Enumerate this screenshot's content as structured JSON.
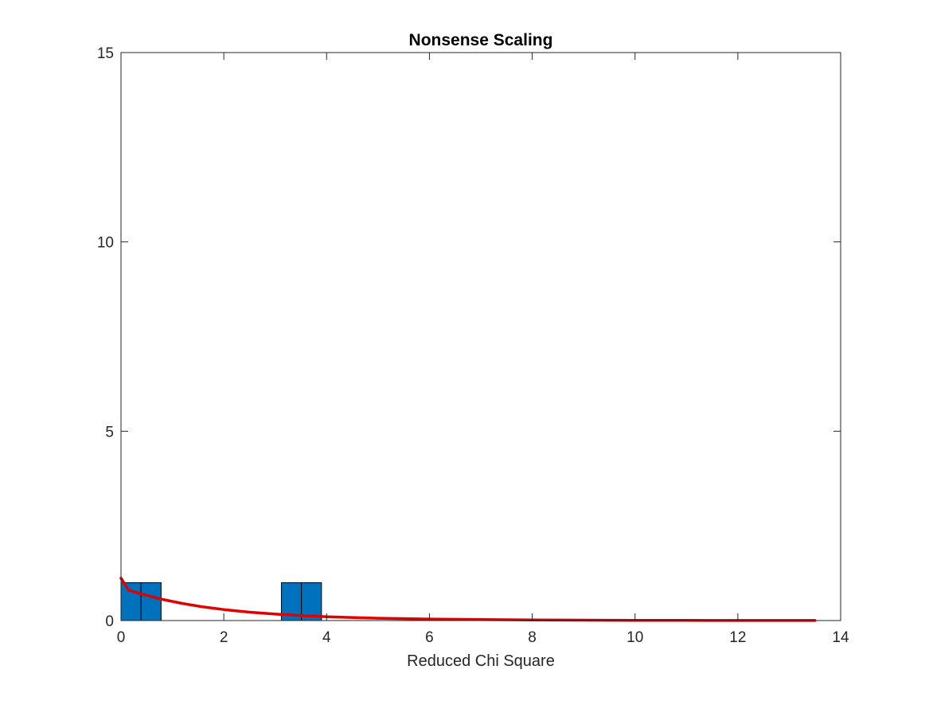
{
  "chart_data": {
    "type": "bar",
    "title": "Nonsense Scaling",
    "xlabel": "Reduced Chi Square",
    "ylabel": "",
    "xlim": [
      0,
      14
    ],
    "ylim": [
      0,
      15
    ],
    "x_ticks": [
      0,
      2,
      4,
      6,
      8,
      10,
      12,
      14
    ],
    "y_ticks": [
      0,
      5,
      10,
      15
    ],
    "grid": false,
    "histogram_bins": [
      {
        "x_start": 0.0,
        "x_end": 0.39,
        "count": 1
      },
      {
        "x_start": 0.39,
        "x_end": 0.78,
        "count": 1
      },
      {
        "x_start": 3.12,
        "x_end": 3.51,
        "count": 1
      },
      {
        "x_start": 3.51,
        "x_end": 3.9,
        "count": 1
      }
    ],
    "curve": {
      "x": [
        0.0,
        0.15,
        0.4,
        0.8,
        1.2,
        1.6,
        2.0,
        2.5,
        3.0,
        3.5,
        4.0,
        5.0,
        6.0,
        7.0,
        8.0,
        9.0,
        10.0,
        11.0,
        12.0,
        13.0,
        13.5
      ],
      "y": [
        1.12,
        0.8,
        0.7,
        0.56,
        0.45,
        0.36,
        0.29,
        0.22,
        0.17,
        0.13,
        0.1,
        0.06,
        0.04,
        0.025,
        0.016,
        0.01,
        0.007,
        0.005,
        0.003,
        0.002,
        0.002
      ]
    },
    "colors": {
      "bar_fill": "#0072BD",
      "bar_edge": "#000000",
      "curve": "#E00000",
      "axes": "#262626"
    }
  }
}
